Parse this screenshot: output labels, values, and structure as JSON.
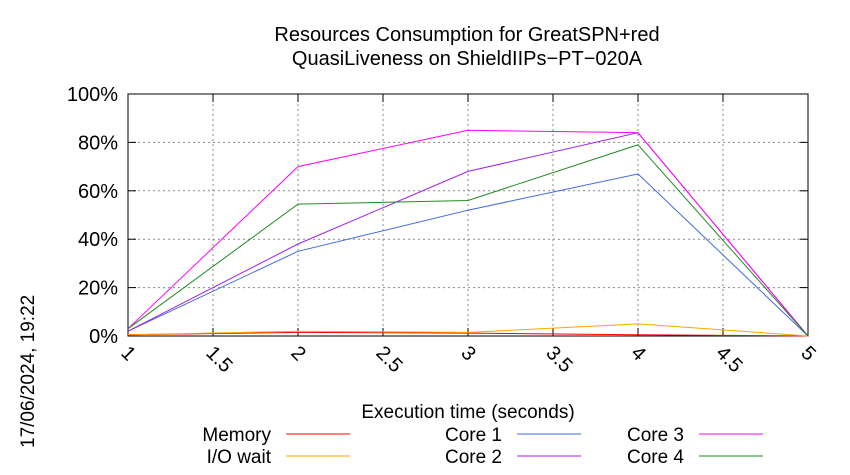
{
  "chart_data": {
    "type": "line",
    "title": [
      "Resources Consumption for GreatSPN+red",
      "QuasiLiveness on ShieldIIPs−PT−020A"
    ],
    "xlabel": "Execution time (seconds)",
    "ylabel": "",
    "x": [
      1,
      2,
      3,
      4,
      5
    ],
    "xlim": [
      1,
      5
    ],
    "ylim": [
      0,
      100
    ],
    "x_ticks": [
      "1",
      "1.5",
      "2",
      "2.5",
      "3",
      "3.5",
      "4",
      "4.5",
      "5"
    ],
    "y_ticks": [
      "0%",
      "20%",
      "40%",
      "60%",
      "80%",
      "100%"
    ],
    "grid": true,
    "legend_position": "bottom",
    "series": [
      {
        "name": "Memory",
        "color": "#ff0000",
        "values": [
          0.5,
          1.5,
          1.2,
          0.5,
          0
        ]
      },
      {
        "name": "I/O wait",
        "color": "#ffa500",
        "values": [
          0.5,
          2,
          1.5,
          5,
          0
        ]
      },
      {
        "name": "Core 1",
        "color": "#4169e1",
        "values": [
          2,
          35,
          52,
          67,
          0
        ]
      },
      {
        "name": "Core 2",
        "color": "#a020f0",
        "values": [
          2,
          38,
          68,
          84,
          0
        ]
      },
      {
        "name": "Core 3",
        "color": "#ff00ff",
        "values": [
          3,
          70,
          85,
          84,
          0
        ]
      },
      {
        "name": "Core 4",
        "color": "#228b22",
        "values": [
          3,
          54.5,
          56,
          79,
          0
        ]
      }
    ]
  },
  "timestamp": "17/06/2024, 19:22"
}
